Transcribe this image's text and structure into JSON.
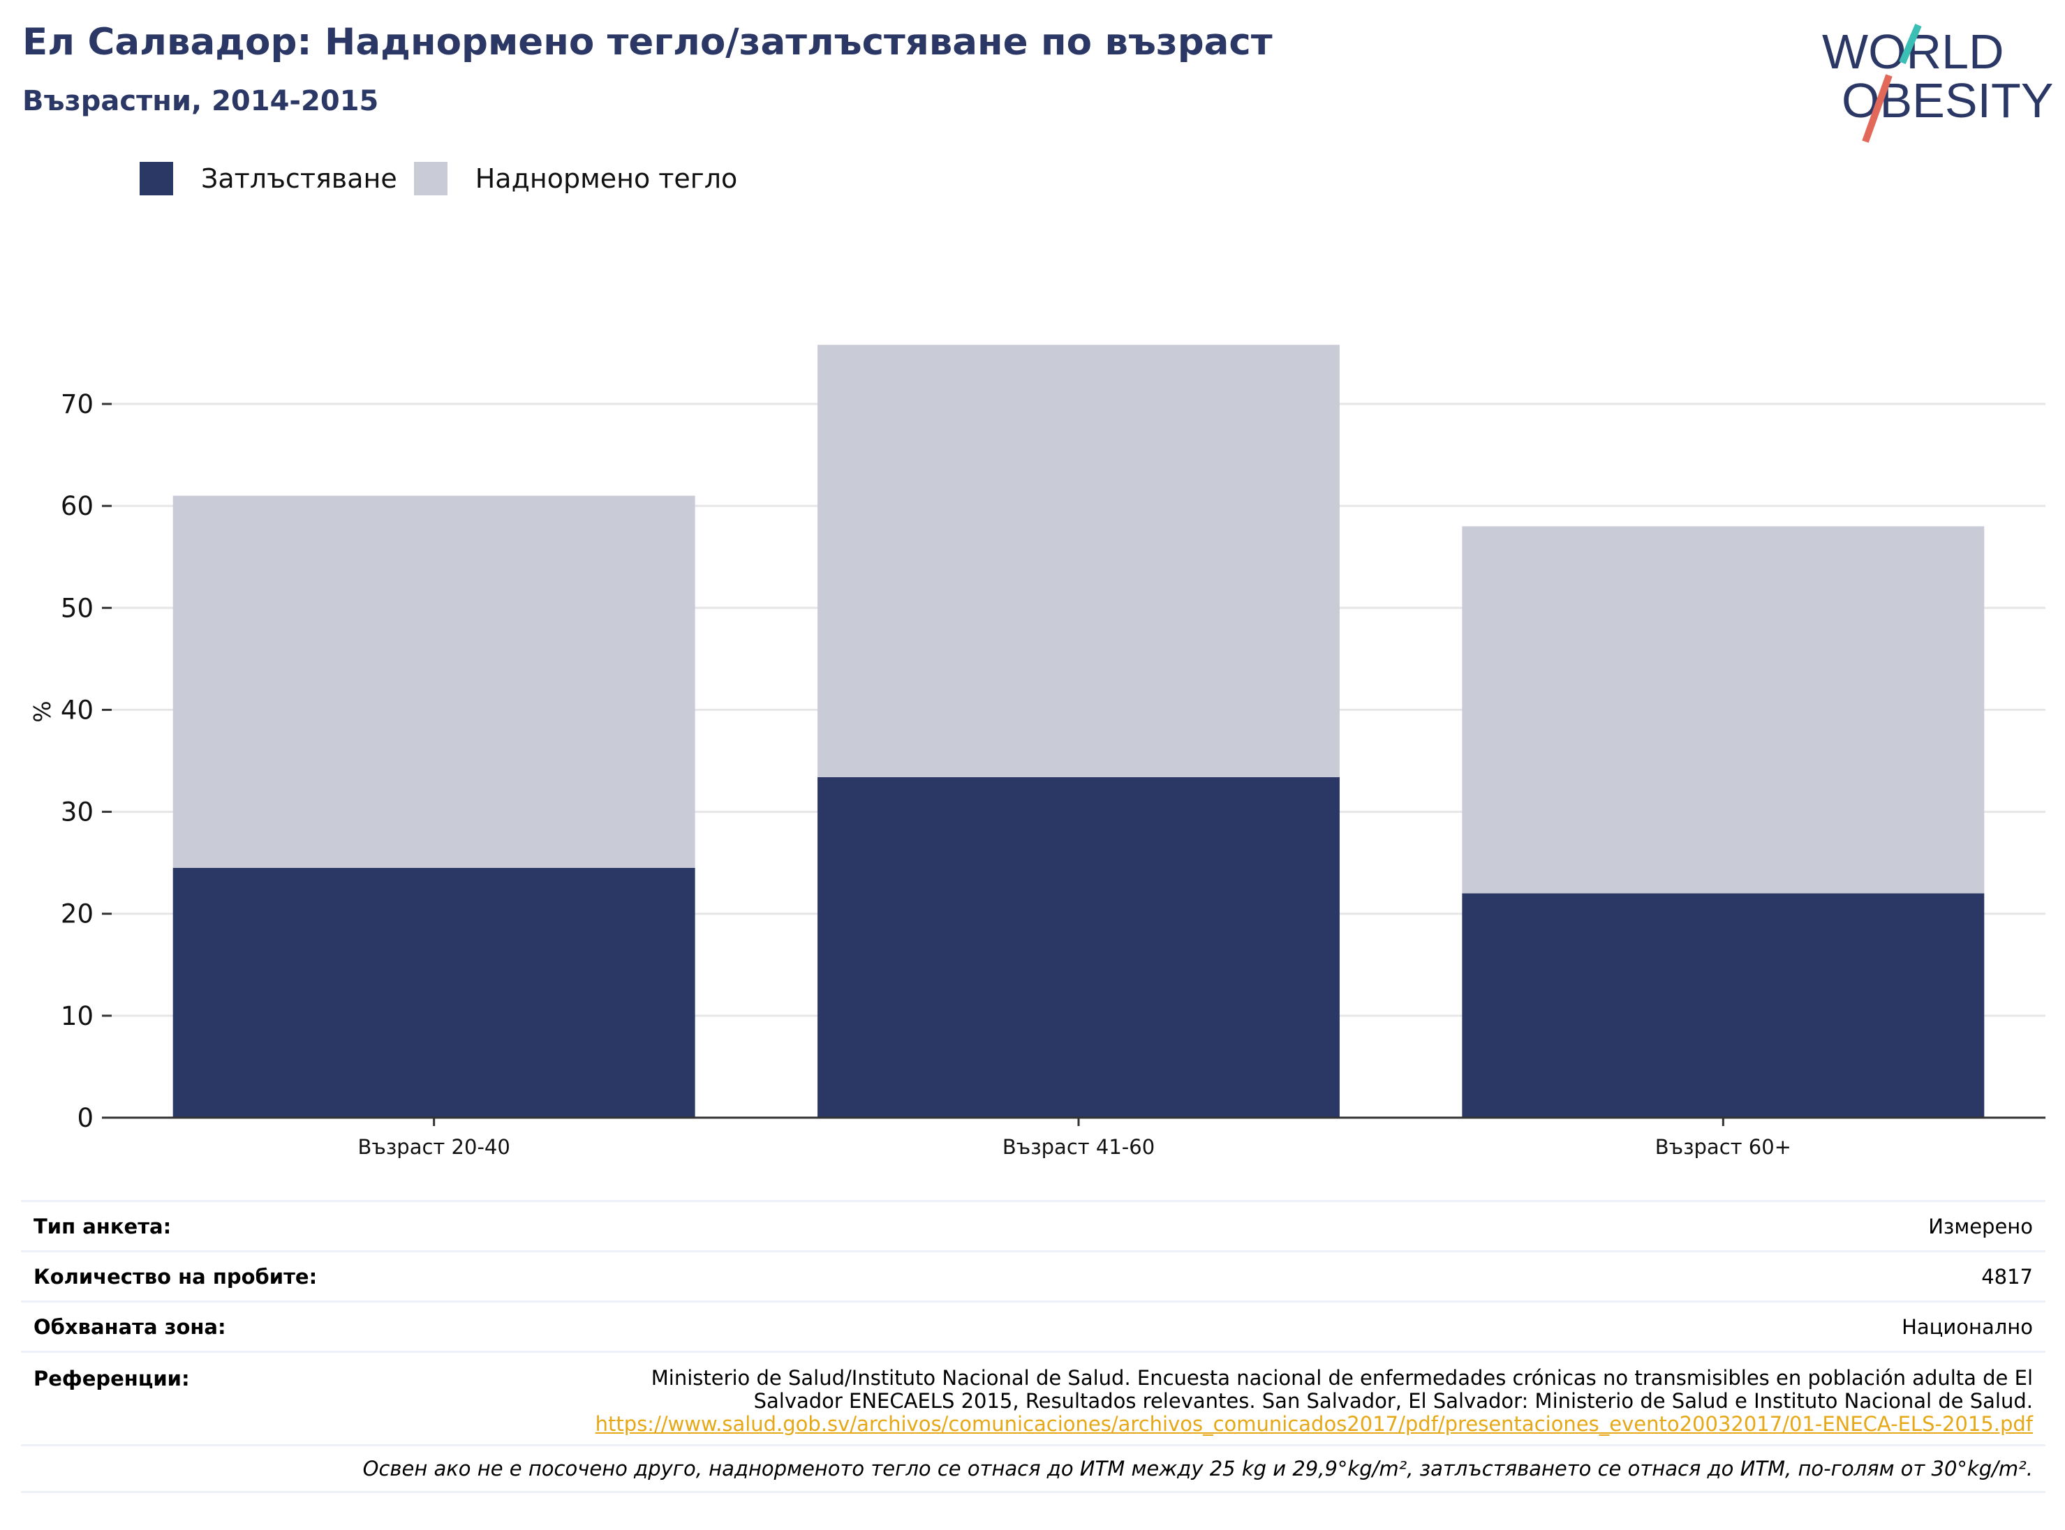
{
  "header": {
    "title": "Ел Салвадор: Наднормено тегло/затлъстяване по възраст",
    "subtitle": "Възрастни, 2014-2015"
  },
  "logo": {
    "line1": "WORLD",
    "line2": "OBESITY",
    "colors": {
      "text": "#2b3765",
      "slash_top": "#3bbfb4",
      "slash_bottom": "#e2685a"
    }
  },
  "colors": {
    "obesity": "#2b3765",
    "overweight": "#c9cbd7",
    "grid": "#e6e6e6",
    "axis": "#333333"
  },
  "chart_data": {
    "type": "bar",
    "stacked": true,
    "title": "Ел Салвадор: Наднормено тегло/затлъстяване по възраст",
    "subtitle": "Възрастни, 2014-2015",
    "xlabel": "",
    "ylabel": "%",
    "ylim": [
      0,
      80
    ],
    "yticks": [
      0,
      10,
      20,
      30,
      40,
      50,
      60,
      70
    ],
    "grid": true,
    "legend_position": "top-left",
    "categories": [
      "Възраст 20-40",
      "Възраст 41-60",
      "Възраст 60+"
    ],
    "series": [
      {
        "name": "Затлъстяване",
        "color": "#2b3765",
        "values": [
          24.5,
          33.4,
          22.0
        ]
      },
      {
        "name": "Наднормено тегло",
        "color": "#c9cbd7",
        "values": [
          36.5,
          42.4,
          36.0
        ]
      }
    ]
  },
  "info": {
    "survey_type": {
      "label": "Тип анкета:",
      "value": "Измерено"
    },
    "sample_size": {
      "label": "Количество на пробите:",
      "value": "4817"
    },
    "area": {
      "label": "Обхваната зона:",
      "value": "Национално"
    },
    "references": {
      "label": "Референции:",
      "line1": "Ministerio de Salud/Instituto Nacional de Salud. Encuesta nacional de enfermedades crónicas no transmisibles en población adulta de El",
      "line2": "Salvador ENECAELS 2015, Resultados relevantes. San Salvador, El Salvador: Ministerio de Salud e Instituto Nacional de Salud.",
      "link": "https://www.salud.gob.sv/archivos/comunicaciones/archivos_comunicados2017/pdf/presentaciones_evento20032017/01-ENECA-ELS-2015.pdf"
    },
    "note": "Освен ако не е посочено друго, наднорменото тегло се отнася до ИТМ между 25 kg и 29,9°kg/m², затлъстяването се отнася до ИТМ, по-голям от 30°kg/m²."
  }
}
